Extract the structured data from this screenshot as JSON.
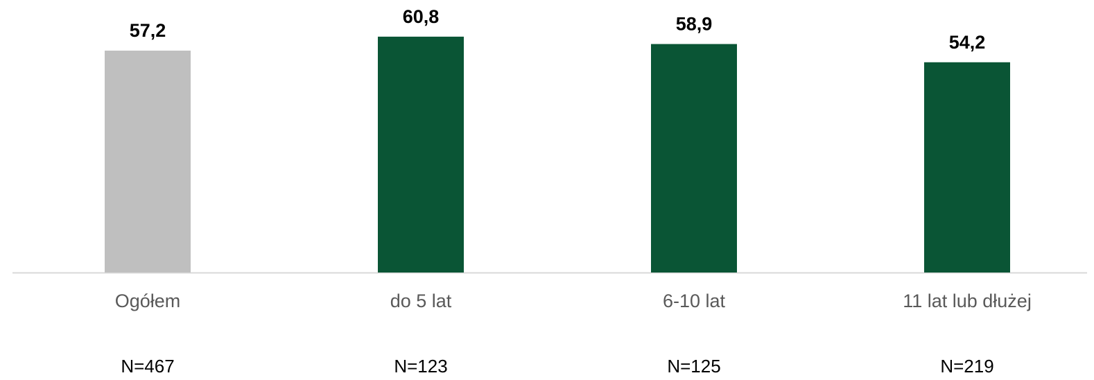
{
  "chart_data": {
    "type": "bar",
    "categories": [
      "Ogółem",
      "do 5 lat",
      "6-10 lat",
      "11 lat lub dłużej"
    ],
    "values": [
      57.2,
      60.8,
      58.9,
      54.2
    ],
    "value_labels": [
      "57,2",
      "60,8",
      "58,9",
      "54,2"
    ],
    "colors": [
      "#bfbfbf",
      "#0a5535",
      "#0a5535",
      "#0a5535"
    ],
    "sample_sizes": [
      "N=467",
      "N=123",
      "N=125",
      "N=219"
    ],
    "ylim": [
      0,
      70
    ]
  }
}
